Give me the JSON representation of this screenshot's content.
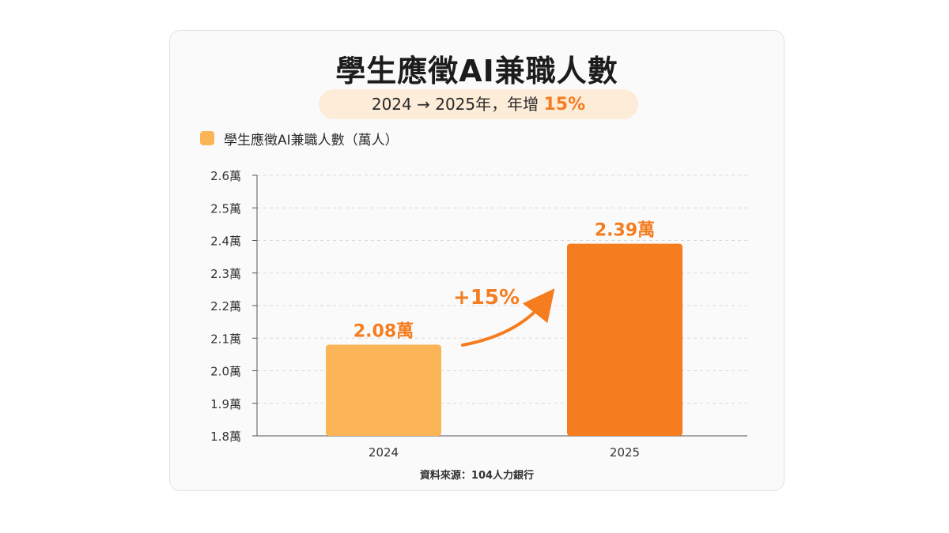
{
  "header": {
    "title": "學生應徵AI兼職人數",
    "subtitle_prefix": "2024 → 2025年，年增 ",
    "subtitle_highlight": "15%"
  },
  "footer": {
    "source": "資料來源：104人力銀行"
  },
  "annotation": {
    "growth_label": "+15%"
  },
  "colors": {
    "bar_2024": "#fbb557",
    "bar_2025": "#f57c1f",
    "accent": "#f57c1f"
  },
  "chart_data": {
    "type": "bar",
    "title": "學生應徵AI兼職人數",
    "categories": [
      "2024",
      "2025"
    ],
    "series": [
      {
        "name": "學生應徵AI兼職人數（萬人）",
        "values": [
          2.08,
          2.39
        ],
        "data_labels": [
          "2.08萬",
          "2.39萬"
        ]
      }
    ],
    "ylim": [
      1.8,
      2.6
    ],
    "yticks": [
      1.8,
      1.9,
      2.0,
      2.1,
      2.2,
      2.3,
      2.4,
      2.5,
      2.6
    ],
    "ytick_labels": [
      "1.8萬",
      "1.9萬",
      "2.0萬",
      "2.1萬",
      "2.2萬",
      "2.3萬",
      "2.4萬",
      "2.5萬",
      "2.6萬"
    ],
    "xlabel": "",
    "ylabel": "",
    "grid": true,
    "legend": "top-left"
  }
}
